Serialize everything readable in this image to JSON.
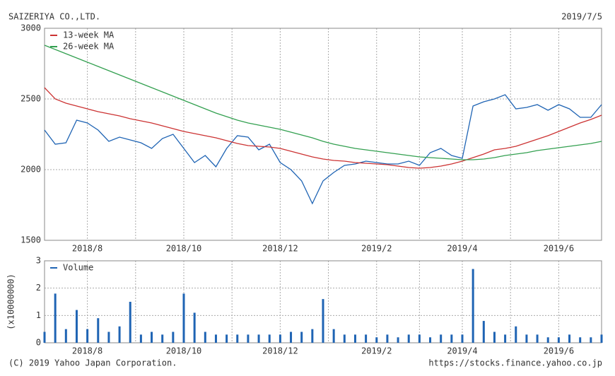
{
  "header": {
    "title": "SAIZERIYA CO.,LTD.",
    "date": "2019/7/5"
  },
  "footer": {
    "copyright": "(C) 2019 Yahoo Japan Corporation.",
    "url": "https://stocks.finance.yahoo.co.jp"
  },
  "chart_data": [
    {
      "type": "line",
      "categories": [
        null,
        null,
        null,
        null,
        "2018/8",
        null,
        null,
        null,
        null,
        null,
        null,
        null,
        null,
        "2018/10",
        null,
        null,
        null,
        null,
        null,
        null,
        null,
        null,
        "2018/12",
        null,
        null,
        null,
        null,
        null,
        null,
        null,
        null,
        "2019/2",
        null,
        null,
        null,
        null,
        null,
        null,
        null,
        "2019/4",
        null,
        null,
        null,
        null,
        null,
        null,
        null,
        null,
        "2019/6",
        null,
        null,
        null,
        null
      ],
      "ylim": [
        1500,
        3000
      ],
      "yticks": [
        1500,
        2000,
        2500,
        3000
      ],
      "grid": true,
      "legend": "upper-left",
      "series": [
        {
          "color": "#1f64b4",
          "values": [
            2280,
            2180,
            2190,
            2350,
            2330,
            2280,
            2200,
            2230,
            2210,
            2190,
            2150,
            2220,
            2250,
            2150,
            2050,
            2100,
            2020,
            2150,
            2240,
            2230,
            2140,
            2180,
            2050,
            2000,
            1920,
            1760,
            1920,
            1980,
            2030,
            2040,
            2060,
            2050,
            2040,
            2040,
            2060,
            2030,
            2120,
            2150,
            2100,
            2080,
            2450,
            2480,
            2500,
            2530,
            2430,
            2440,
            2460,
            2420,
            2460,
            2430,
            2370,
            2370,
            2460
          ]
        },
        {
          "name": "13-week MA",
          "color": "#cc3333",
          "values": [
            2580,
            2500,
            2470,
            2450,
            2430,
            2410,
            2395,
            2380,
            2360,
            2345,
            2330,
            2310,
            2290,
            2270,
            2255,
            2240,
            2225,
            2205,
            2185,
            2170,
            2165,
            2160,
            2150,
            2130,
            2110,
            2090,
            2075,
            2065,
            2060,
            2050,
            2045,
            2040,
            2035,
            2025,
            2015,
            2010,
            2015,
            2025,
            2040,
            2060,
            2085,
            2110,
            2140,
            2150,
            2165,
            2190,
            2215,
            2240,
            2270,
            2300,
            2330,
            2355,
            2385
          ]
        },
        {
          "name": "26-week MA",
          "color": "#33a050",
          "values": [
            2880,
            2850,
            2820,
            2790,
            2760,
            2730,
            2700,
            2670,
            2640,
            2610,
            2580,
            2550,
            2520,
            2490,
            2460,
            2430,
            2400,
            2375,
            2350,
            2330,
            2315,
            2300,
            2285,
            2265,
            2245,
            2225,
            2200,
            2180,
            2165,
            2150,
            2140,
            2130,
            2120,
            2110,
            2100,
            2090,
            2085,
            2080,
            2075,
            2070,
            2070,
            2075,
            2085,
            2100,
            2110,
            2120,
            2135,
            2145,
            2155,
            2165,
            2175,
            2185,
            2200
          ]
        }
      ]
    },
    {
      "type": "bar",
      "ylabel": "(x10000000)",
      "categories": [
        null,
        null,
        null,
        null,
        "2018/8",
        null,
        null,
        null,
        null,
        null,
        null,
        null,
        null,
        "2018/10",
        null,
        null,
        null,
        null,
        null,
        null,
        null,
        null,
        "2018/12",
        null,
        null,
        null,
        null,
        null,
        null,
        null,
        null,
        "2019/2",
        null,
        null,
        null,
        null,
        null,
        null,
        null,
        "2019/4",
        null,
        null,
        null,
        null,
        null,
        null,
        null,
        null,
        "2019/6",
        null,
        null,
        null,
        null
      ],
      "ylim": [
        0,
        3
      ],
      "yticks": [
        0,
        1,
        2,
        3
      ],
      "grid": true,
      "legend": "upper-left",
      "series": [
        {
          "name": "Volume",
          "color": "#1f64b4",
          "values": [
            0.4,
            1.8,
            0.5,
            1.2,
            0.5,
            0.9,
            0.4,
            0.6,
            1.5,
            0.3,
            0.4,
            0.3,
            0.4,
            1.8,
            1.1,
            0.4,
            0.3,
            0.3,
            0.3,
            0.3,
            0.3,
            0.3,
            0.3,
            0.4,
            0.4,
            0.5,
            1.6,
            0.5,
            0.3,
            0.3,
            0.3,
            0.2,
            0.3,
            0.2,
            0.3,
            0.3,
            0.2,
            0.3,
            0.3,
            0.3,
            2.7,
            0.8,
            0.4,
            0.3,
            0.6,
            0.3,
            0.3,
            0.2,
            0.2,
            0.3,
            0.2,
            0.2,
            0.3
          ]
        }
      ]
    }
  ]
}
